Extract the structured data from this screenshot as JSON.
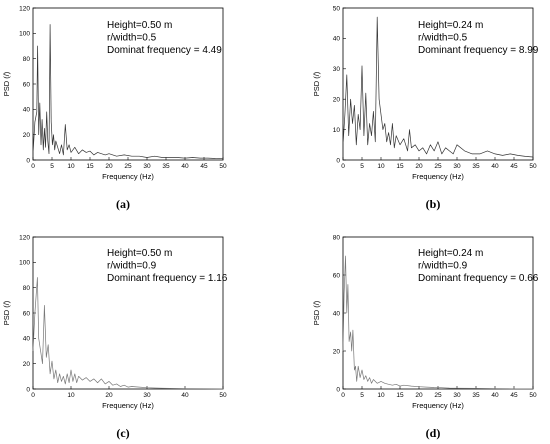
{
  "figure": {
    "labels": [
      "(a)",
      "(b)",
      "(c)",
      "(d)"
    ]
  },
  "chart_data": [
    {
      "type": "line",
      "panel_label": "(a)",
      "xlabel": "Frequency (Hz)",
      "ylabel": "PSD (/)",
      "xlim": [
        0,
        50
      ],
      "ylim": [
        0,
        120
      ],
      "xticks": [
        0,
        5,
        10,
        15,
        20,
        25,
        30,
        35,
        40,
        45,
        50
      ],
      "yticks": [
        0,
        20,
        40,
        60,
        80,
        100,
        120
      ],
      "annotations": [
        "Height=0.50 m",
        "r/width=0.5",
        "Dominat  frequency = 4.49"
      ],
      "line_color": "#333333",
      "x": [
        0,
        0.5,
        1.0,
        1.2,
        1.5,
        1.8,
        2.1,
        2.4,
        2.7,
        3.0,
        3.3,
        3.6,
        3.9,
        4.2,
        4.49,
        4.8,
        5.1,
        5.4,
        5.7,
        6.0,
        6.5,
        7.0,
        7.5,
        8.0,
        8.5,
        9.0,
        9.5,
        10,
        11,
        12,
        13,
        14,
        15,
        16,
        17,
        18,
        19,
        20,
        22,
        24,
        26,
        28,
        30,
        32,
        34,
        36,
        38,
        40,
        42,
        44,
        46,
        48,
        50
      ],
      "y": [
        5,
        30,
        38,
        90,
        20,
        45,
        12,
        32,
        8,
        25,
        10,
        38,
        15,
        5,
        107,
        30,
        12,
        20,
        8,
        15,
        10,
        5,
        12,
        4,
        28,
        8,
        12,
        6,
        10,
        5,
        8,
        6,
        7,
        4,
        6,
        5,
        4,
        5,
        3,
        4,
        3,
        3,
        2,
        3,
        2,
        2,
        2,
        1.5,
        2,
        1.5,
        1.5,
        1.2,
        1
      ]
    },
    {
      "type": "line",
      "panel_label": "(b)",
      "xlabel": "Frequency (Hz)",
      "ylabel": "PSD (/)",
      "xlim": [
        0,
        50
      ],
      "ylim": [
        0,
        50
      ],
      "xticks": [
        0,
        5,
        10,
        15,
        20,
        25,
        30,
        35,
        40,
        45,
        50
      ],
      "yticks": [
        0,
        10,
        20,
        30,
        40,
        50
      ],
      "annotations": [
        "Height=0.24 m",
        "r/width=0.5",
        "Dominant  frequency = 8.99"
      ],
      "line_color": "#333333",
      "x": [
        0,
        0.5,
        1.0,
        1.5,
        2.0,
        2.5,
        3.0,
        3.5,
        4.0,
        4.5,
        5.0,
        5.5,
        6.0,
        6.5,
        7.0,
        7.5,
        8.0,
        8.5,
        8.99,
        9.5,
        10,
        10.5,
        11,
        11.5,
        12,
        12.5,
        13,
        13.5,
        14,
        15,
        16,
        17,
        17.5,
        18,
        19,
        20,
        21,
        22,
        23,
        24,
        25,
        26,
        27,
        28,
        29,
        30,
        32,
        34,
        36,
        38,
        40,
        42,
        44,
        46,
        48,
        50
      ],
      "y": [
        5,
        15,
        28,
        8,
        20,
        12,
        18,
        5,
        15,
        10,
        31,
        8,
        22,
        5,
        12,
        8,
        16,
        6,
        47,
        20,
        15,
        10,
        12,
        6,
        9,
        5,
        12,
        4,
        8,
        5,
        7,
        3,
        10,
        4,
        5,
        3,
        4,
        2,
        5,
        3,
        6,
        2,
        4,
        3,
        2,
        5,
        3,
        2,
        2,
        3,
        2,
        1.5,
        2,
        1.5,
        1.2,
        1
      ]
    },
    {
      "type": "line",
      "panel_label": "(c)",
      "xlabel": "Frequency (Hz)",
      "ylabel": "PSD (/)",
      "xlim": [
        0,
        50
      ],
      "ylim": [
        0,
        120
      ],
      "xticks": [
        0,
        10,
        20,
        30,
        40,
        50
      ],
      "yticks": [
        0,
        20,
        40,
        60,
        80,
        100,
        120
      ],
      "annotations": [
        "Height=0.50 m",
        "r/width=0.9",
        "Dominant  frequency = 1.16"
      ],
      "line_color": "#777777",
      "x": [
        0,
        0.5,
        1.16,
        1.5,
        2.0,
        2.5,
        3.0,
        3.5,
        4.0,
        4.5,
        5.0,
        5.5,
        6.0,
        6.5,
        7.0,
        7.5,
        8.0,
        8.5,
        9.0,
        9.5,
        10,
        10.5,
        11,
        11.5,
        12,
        13,
        14,
        15,
        16,
        17,
        18,
        19,
        20,
        21,
        22,
        23,
        24,
        25,
        26,
        28,
        30,
        32,
        34,
        36,
        38,
        40,
        45,
        50
      ],
      "y": [
        30,
        60,
        88,
        40,
        30,
        20,
        66,
        25,
        35,
        12,
        22,
        8,
        15,
        5,
        12,
        6,
        10,
        4,
        12,
        5,
        15,
        6,
        12,
        5,
        10,
        7,
        9,
        6,
        8,
        5,
        8,
        4,
        6,
        3,
        4,
        2,
        3,
        1.5,
        2,
        1.5,
        1,
        0.8,
        0.6,
        0.5,
        0.4,
        0.3,
        0.2,
        0.1
      ]
    },
    {
      "type": "line",
      "panel_label": "(d)",
      "xlabel": "Frequency (Hz)",
      "ylabel": "PSD (/)",
      "xlim": [
        0,
        50
      ],
      "ylim": [
        0,
        80
      ],
      "xticks": [
        0,
        5,
        10,
        15,
        20,
        25,
        30,
        35,
        40,
        45,
        50
      ],
      "yticks": [
        0,
        20,
        40,
        60,
        80
      ],
      "annotations": [
        "Height=0.24 m",
        "r/width=0.9",
        "Dominant  frequency = 0.66"
      ],
      "line_color": "#777777",
      "x": [
        0,
        0.3,
        0.66,
        1.0,
        1.3,
        1.6,
        2.0,
        2.3,
        2.6,
        3.0,
        3.3,
        3.6,
        4.0,
        4.5,
        5.0,
        5.5,
        6.0,
        6.5,
        7.0,
        7.5,
        8.0,
        9,
        10,
        11,
        12,
        13,
        14,
        15,
        16,
        18,
        20,
        22,
        24,
        26,
        28,
        30,
        35,
        40,
        45,
        50
      ],
      "y": [
        20,
        50,
        70,
        40,
        55,
        25,
        30,
        20,
        31,
        10,
        12,
        4,
        12,
        6,
        10,
        5,
        7,
        4,
        6,
        3,
        5,
        3,
        4,
        3,
        2.5,
        2,
        2.5,
        1.5,
        2,
        1.5,
        1.2,
        1,
        0.8,
        0.7,
        0.5,
        0.4,
        0.3,
        0.2,
        0.1,
        0.1
      ]
    }
  ]
}
